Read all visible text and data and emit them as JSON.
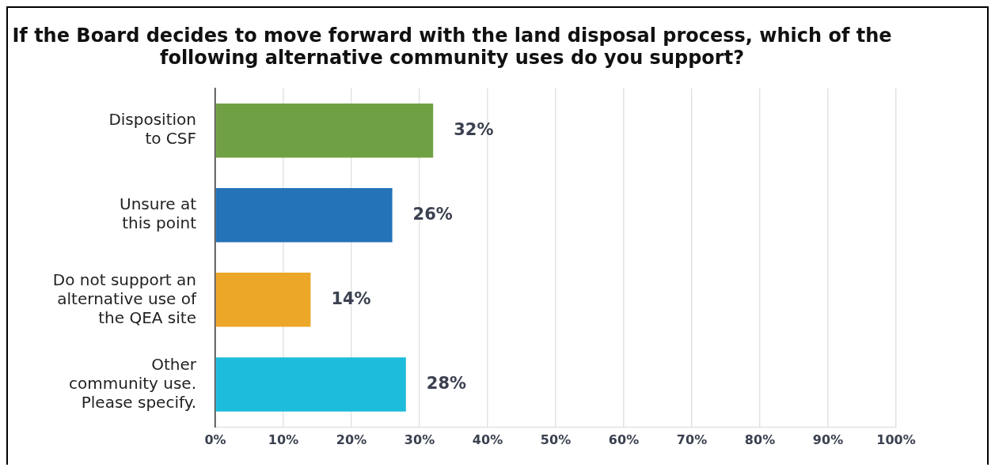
{
  "chart_data": {
    "type": "bar",
    "orientation": "horizontal",
    "title": "If the Board decides to move forward with the land disposal process, which of the following alternative community uses do you support?",
    "categories": [
      "Disposition\nto CSF",
      "Unsure at\nthis point",
      "Do not support an\nalternative use of\nthe QEA site",
      "Other\ncommunity use.\nPlease specify."
    ],
    "values": [
      32,
      26,
      14,
      28
    ],
    "colors": [
      "#70a044",
      "#2472b8",
      "#eca628",
      "#1ebcdc"
    ],
    "xlim": [
      0,
      100
    ],
    "xticks": [
      {
        "value": 0,
        "label": "0%"
      },
      {
        "value": 10,
        "label": "10%"
      },
      {
        "value": 20,
        "label": "20%"
      },
      {
        "value": 30,
        "label": "30%"
      },
      {
        "value": 40,
        "label": "40%"
      },
      {
        "value": 50,
        "label": "50%"
      },
      {
        "value": 60,
        "label": "60%"
      },
      {
        "value": 70,
        "label": "70%"
      },
      {
        "value": 80,
        "label": "80%"
      },
      {
        "value": 90,
        "label": "90%"
      },
      {
        "value": 100,
        "label": "100%"
      }
    ],
    "value_labels": [
      "32%",
      "26%",
      "14%",
      "28%"
    ],
    "grid": "x",
    "legend": false
  }
}
